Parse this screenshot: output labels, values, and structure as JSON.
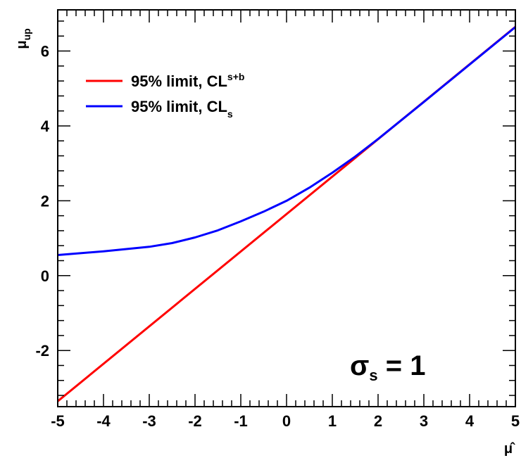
{
  "chart_data": {
    "type": "line",
    "xlabel": "μ̂",
    "ylabel": "μ",
    "ylabel_sub": "up",
    "xlim": [
      -5,
      5
    ],
    "ylim": [
      -3.5,
      7.1
    ],
    "x_ticks": [
      -5,
      -4,
      -3,
      -2,
      -1,
      0,
      1,
      2,
      3,
      4,
      5
    ],
    "x_tick_labels": [
      "-5",
      "-4",
      "-3",
      "-2",
      "-1",
      "0",
      "1",
      "2",
      "3",
      "4",
      "5"
    ],
    "y_ticks": [
      -2,
      0,
      2,
      4,
      6
    ],
    "y_tick_labels": [
      "-2",
      "0",
      "2",
      "4",
      "6"
    ],
    "grid": false,
    "legend_position": "top-left",
    "annotation": {
      "main": "σ",
      "sub": "s",
      "rest": " = 1"
    },
    "series": [
      {
        "name": "95% limit, CL",
        "name_sub": "s+b",
        "color": "#ff0000",
        "x": [
          -5,
          5
        ],
        "y": [
          -3.355,
          6.645
        ]
      },
      {
        "name": "95% limit, CL",
        "name_sub": "s",
        "color": "#0000ff",
        "x": [
          -5,
          -4,
          -3,
          -2.5,
          -2,
          -1.5,
          -1,
          -0.5,
          0,
          0.5,
          1,
          1.5,
          2,
          3,
          4,
          5
        ],
        "y": [
          0.55,
          0.65,
          0.77,
          0.87,
          1.02,
          1.21,
          1.45,
          1.71,
          2.0,
          2.35,
          2.75,
          3.18,
          3.65,
          4.64,
          5.64,
          6.64
        ]
      }
    ]
  }
}
